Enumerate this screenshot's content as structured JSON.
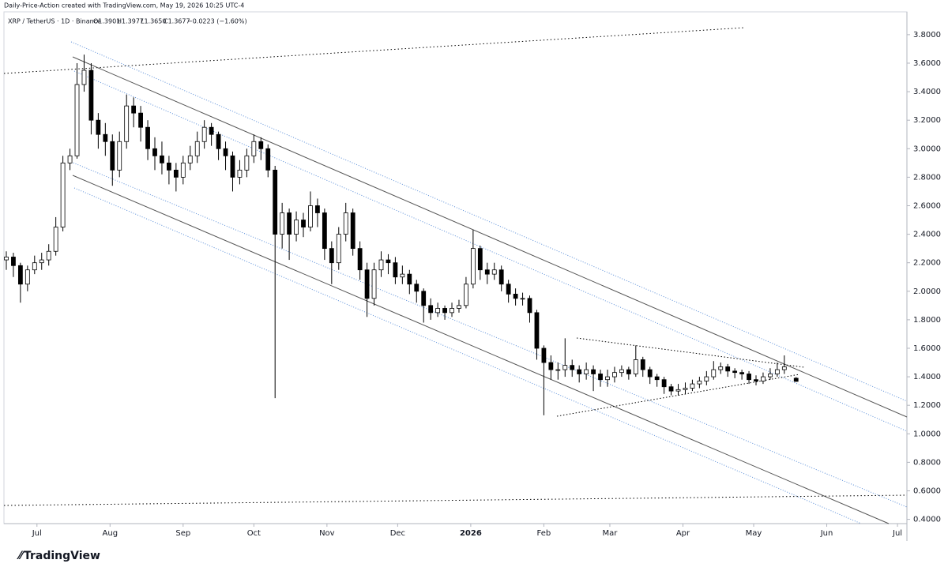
{
  "header": {
    "credit": "Daily-Price-Action created with TradingView.com, May 19, 2026 10:25 UTC-4",
    "symbol": "XRP / TetherUS · 1D · Binance",
    "ohlc": [
      "O1.3901",
      "H1.3977",
      "L1.3650",
      "C1.3677"
    ],
    "change": "−0.0223 (−1.60%)"
  },
  "footer": {
    "brand": "TradingView"
  },
  "chart_data": {
    "type": "candlestick",
    "x": [
      0,
      3,
      6,
      9,
      12,
      15,
      18,
      21,
      24,
      27,
      30,
      33,
      36,
      39,
      42,
      45,
      48,
      51,
      54,
      57,
      60,
      63,
      66,
      69,
      72,
      75,
      78,
      81,
      84,
      87,
      90,
      93,
      96,
      99,
      102,
      105,
      108,
      111,
      114,
      117,
      120,
      123,
      126,
      129,
      132,
      135,
      138,
      141,
      144,
      147,
      150,
      153,
      156,
      159,
      162,
      165,
      168,
      171,
      174,
      177,
      180,
      183,
      186,
      189,
      192,
      195,
      198,
      201,
      204,
      207,
      210,
      213,
      216,
      219,
      222,
      225,
      228,
      231,
      234,
      237,
      240,
      243,
      246,
      249,
      252,
      255,
      258,
      261,
      264,
      267,
      270,
      273,
      276,
      279,
      282,
      285,
      288,
      291,
      294,
      297,
      300,
      303,
      306,
      309,
      312,
      315,
      318,
      321,
      324,
      327,
      330,
      335
    ],
    "open": [
      2.22,
      2.24,
      2.18,
      2.05,
      2.15,
      2.2,
      2.22,
      2.28,
      2.45,
      2.9,
      2.95,
      3.45,
      3.55,
      3.2,
      3.1,
      3.05,
      2.85,
      3.05,
      3.3,
      3.25,
      3.15,
      3.0,
      2.95,
      2.9,
      2.85,
      2.8,
      2.9,
      2.95,
      3.05,
      3.15,
      3.1,
      3.0,
      2.95,
      2.8,
      2.85,
      2.95,
      3.05,
      3.0,
      2.85,
      2.4,
      2.55,
      2.4,
      2.5,
      2.45,
      2.6,
      2.55,
      2.3,
      2.2,
      2.4,
      2.55,
      2.3,
      2.15,
      1.95,
      2.15,
      2.22,
      2.2,
      2.1,
      2.12,
      2.05,
      2.0,
      1.9,
      1.85,
      1.88,
      1.85,
      1.88,
      1.9,
      2.05,
      2.3,
      2.15,
      2.12,
      2.15,
      2.05,
      1.98,
      1.95,
      1.95,
      1.85,
      1.6,
      1.5,
      1.45,
      1.45,
      1.48,
      1.45,
      1.42,
      1.45,
      1.42,
      1.38,
      1.4,
      1.43,
      1.45,
      1.42,
      1.52,
      1.45,
      1.4,
      1.38,
      1.33,
      1.3,
      1.31,
      1.32,
      1.35,
      1.37,
      1.4,
      1.45,
      1.47,
      1.44,
      1.43,
      1.42,
      1.38,
      1.37,
      1.4,
      1.42,
      1.45,
      1.3901
    ],
    "high": [
      2.28,
      2.27,
      2.2,
      2.18,
      2.25,
      2.27,
      2.33,
      2.52,
      2.95,
      3.0,
      3.6,
      3.66,
      3.6,
      3.25,
      3.18,
      3.1,
      3.12,
      3.38,
      3.36,
      3.3,
      3.2,
      3.08,
      3.05,
      2.95,
      2.9,
      2.95,
      3.02,
      3.12,
      3.2,
      3.18,
      3.12,
      3.05,
      2.98,
      2.92,
      3.0,
      3.1,
      3.08,
      3.03,
      2.88,
      2.62,
      2.58,
      2.56,
      2.55,
      2.7,
      2.65,
      2.58,
      2.35,
      2.45,
      2.62,
      2.58,
      2.35,
      2.2,
      2.2,
      2.28,
      2.26,
      2.24,
      2.18,
      2.15,
      2.08,
      2.02,
      1.95,
      1.92,
      1.9,
      1.92,
      1.94,
      2.1,
      2.43,
      2.32,
      2.2,
      2.2,
      2.18,
      2.08,
      2.02,
      1.99,
      1.97,
      1.87,
      1.62,
      1.55,
      1.5,
      1.67,
      1.52,
      1.48,
      1.5,
      1.48,
      1.45,
      1.45,
      1.47,
      1.48,
      1.47,
      1.62,
      1.54,
      1.47,
      1.42,
      1.4,
      1.35,
      1.35,
      1.36,
      1.38,
      1.4,
      1.44,
      1.51,
      1.5,
      1.49,
      1.46,
      1.45,
      1.44,
      1.41,
      1.43,
      1.46,
      1.5,
      1.55,
      1.3977
    ],
    "low": [
      2.15,
      2.1,
      1.92,
      2.0,
      2.12,
      2.15,
      2.18,
      2.25,
      2.42,
      2.85,
      2.93,
      3.4,
      3.1,
      3.0,
      2.95,
      2.74,
      2.8,
      3.0,
      3.15,
      3.05,
      2.92,
      2.85,
      2.82,
      2.75,
      2.7,
      2.75,
      2.85,
      2.9,
      3.0,
      3.02,
      2.92,
      2.85,
      2.7,
      2.75,
      2.8,
      2.9,
      2.92,
      2.8,
      1.25,
      2.3,
      2.22,
      2.35,
      2.38,
      2.42,
      2.45,
      2.22,
      2.05,
      2.15,
      2.35,
      2.25,
      2.08,
      1.82,
      1.9,
      2.1,
      2.12,
      2.05,
      2.05,
      1.98,
      1.92,
      1.78,
      1.8,
      1.82,
      1.8,
      1.82,
      1.85,
      1.88,
      2.02,
      2.08,
      2.05,
      2.08,
      2.0,
      1.92,
      1.9,
      1.9,
      1.78,
      1.52,
      1.13,
      1.38,
      1.38,
      1.4,
      1.4,
      1.36,
      1.38,
      1.3,
      1.33,
      1.33,
      1.36,
      1.4,
      1.38,
      1.4,
      1.4,
      1.35,
      1.33,
      1.28,
      1.27,
      1.27,
      1.28,
      1.3,
      1.32,
      1.34,
      1.38,
      1.42,
      1.4,
      1.39,
      1.38,
      1.35,
      1.34,
      1.35,
      1.38,
      1.4,
      1.42,
      1.365
    ],
    "close": [
      2.24,
      2.18,
      2.05,
      2.15,
      2.2,
      2.22,
      2.28,
      2.45,
      2.9,
      2.95,
      3.45,
      3.55,
      3.2,
      3.1,
      3.05,
      2.85,
      3.05,
      3.3,
      3.25,
      3.15,
      3.0,
      2.95,
      2.9,
      2.85,
      2.8,
      2.9,
      2.95,
      3.05,
      3.15,
      3.1,
      3.0,
      2.95,
      2.8,
      2.85,
      2.95,
      3.05,
      3.0,
      2.85,
      2.4,
      2.55,
      2.4,
      2.5,
      2.45,
      2.6,
      2.55,
      2.3,
      2.2,
      2.4,
      2.55,
      2.3,
      2.15,
      1.95,
      2.15,
      2.22,
      2.2,
      2.1,
      2.12,
      2.05,
      2.0,
      1.9,
      1.85,
      1.88,
      1.85,
      1.88,
      1.9,
      2.05,
      2.3,
      2.15,
      2.12,
      2.15,
      2.05,
      1.98,
      1.95,
      1.95,
      1.85,
      1.6,
      1.5,
      1.45,
      1.45,
      1.48,
      1.45,
      1.42,
      1.45,
      1.42,
      1.38,
      1.4,
      1.43,
      1.45,
      1.42,
      1.52,
      1.45,
      1.4,
      1.38,
      1.33,
      1.3,
      1.31,
      1.32,
      1.35,
      1.37,
      1.4,
      1.45,
      1.47,
      1.44,
      1.43,
      1.42,
      1.38,
      1.37,
      1.4,
      1.42,
      1.45,
      1.47,
      1.3677
    ],
    "up_color": "#ffffff",
    "down_color": "#000000",
    "wick_color": "#000000",
    "xlim": [
      -1,
      382
    ],
    "xticks": [
      {
        "value": 13,
        "label": "Jul"
      },
      {
        "value": 44,
        "label": "Aug"
      },
      {
        "value": 75,
        "label": "Sep"
      },
      {
        "value": 105,
        "label": "Oct"
      },
      {
        "value": 136,
        "label": "Nov"
      },
      {
        "value": 166,
        "label": "Dec"
      },
      {
        "value": 197,
        "label": "2026"
      },
      {
        "value": 228,
        "label": "Feb"
      },
      {
        "value": 256,
        "label": "Mar"
      },
      {
        "value": 287,
        "label": "Apr"
      },
      {
        "value": 317,
        "label": "May"
      },
      {
        "value": 348,
        "label": "Jun"
      },
      {
        "value": 378,
        "label": "Jul"
      }
    ],
    "ylim": [
      0.37,
      3.96
    ],
    "yticks": [
      {
        "value": 0.4,
        "label": "0.4000"
      },
      {
        "value": 0.6,
        "label": "0.6000"
      },
      {
        "value": 0.8,
        "label": "0.8000"
      },
      {
        "value": 1.0,
        "label": "1.0000"
      },
      {
        "value": 1.2,
        "label": "1.2000"
      },
      {
        "value": 1.4,
        "label": "1.4000"
      },
      {
        "value": 1.6,
        "label": "1.6000"
      },
      {
        "value": 1.8,
        "label": "1.8000"
      },
      {
        "value": 2.0,
        "label": "2.0000"
      },
      {
        "value": 2.2,
        "label": "2.2000"
      },
      {
        "value": 2.4,
        "label": "2.4000"
      },
      {
        "value": 2.6,
        "label": "2.6000"
      },
      {
        "value": 2.8,
        "label": "2.8000"
      },
      {
        "value": 3.0,
        "label": "3.0000"
      },
      {
        "value": 3.2,
        "label": "3.2000"
      },
      {
        "value": 3.4,
        "label": "3.4000"
      },
      {
        "value": 3.6,
        "label": "3.6000"
      },
      {
        "value": 3.8,
        "label": "3.8000"
      }
    ],
    "grid": false
  }
}
